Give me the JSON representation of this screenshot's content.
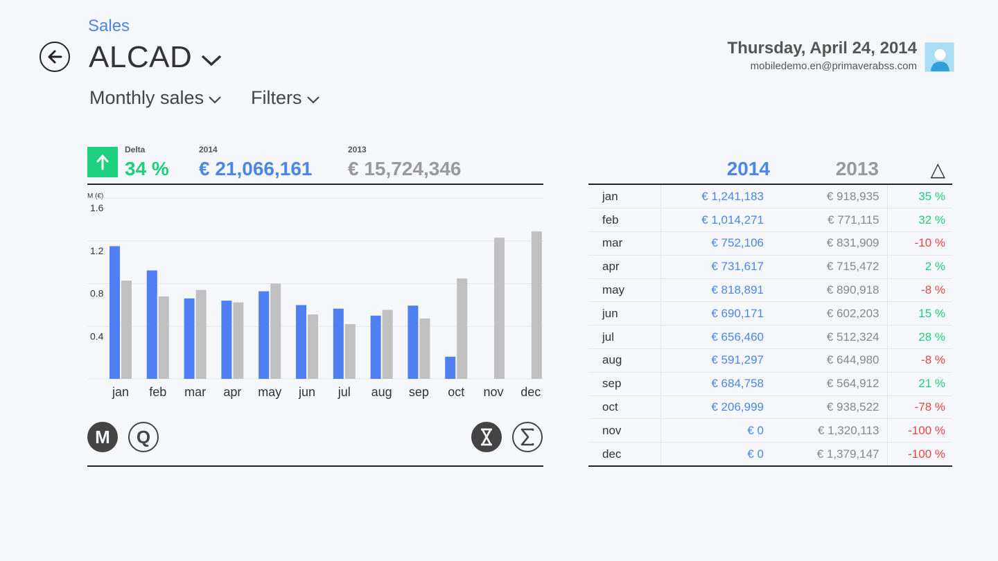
{
  "header": {
    "breadcrumb": "Sales",
    "title": "ALCAD",
    "date": "Thursday, April 24, 2014",
    "email": "mobiledemo.en@primaverabss.com"
  },
  "subnav": {
    "view_label": "Monthly sales",
    "filters_label": "Filters"
  },
  "kpi": {
    "delta_label": "Delta",
    "delta_value": "34 %",
    "current_label": "2014",
    "current_value": "€ 21,066,161",
    "previous_label": "2013",
    "previous_value": "€ 15,724,346"
  },
  "buttons": {
    "monthly": "M",
    "quarterly": "Q"
  },
  "colors": {
    "series_2014": "#4f7ff3",
    "series_2013": "#c0c0c0",
    "positive": "#1ecf7e",
    "negative": "#e84545",
    "accent": "#4a86e8"
  },
  "chart_data": {
    "type": "bar",
    "ylabel": "M (€)",
    "ylim": [
      0,
      1.6
    ],
    "yticks": [
      "1.6",
      "1.2",
      "0.8",
      "0.4"
    ],
    "categories": [
      "jan",
      "feb",
      "mar",
      "apr",
      "may",
      "jun",
      "jul",
      "aug",
      "sep",
      "oct",
      "nov",
      "dec"
    ],
    "series": [
      {
        "name": "2014",
        "values": [
          1.241183,
          1.014271,
          0.752106,
          0.731617,
          0.818891,
          0.690171,
          0.65646,
          0.591297,
          0.684758,
          0.206999,
          0,
          0
        ]
      },
      {
        "name": "2013",
        "values": [
          0.918935,
          0.771115,
          0.831909,
          0.715472,
          0.890918,
          0.602203,
          0.512324,
          0.64498,
          0.564912,
          0.938522,
          1.320113,
          1.379147
        ]
      }
    ]
  },
  "table": {
    "col_2014": "2014",
    "col_2013": "2013",
    "col_delta": "△",
    "rows": [
      {
        "month": "jan",
        "v2014": "€ 1,241,183",
        "v2013": "€ 918,935",
        "delta": "35 %",
        "positive": true
      },
      {
        "month": "feb",
        "v2014": "€ 1,014,271",
        "v2013": "€ 771,115",
        "delta": "32 %",
        "positive": true
      },
      {
        "month": "mar",
        "v2014": "€ 752,106",
        "v2013": "€ 831,909",
        "delta": "-10 %",
        "positive": false
      },
      {
        "month": "apr",
        "v2014": "€ 731,617",
        "v2013": "€ 715,472",
        "delta": "2 %",
        "positive": true
      },
      {
        "month": "may",
        "v2014": "€ 818,891",
        "v2013": "€ 890,918",
        "delta": "-8 %",
        "positive": false
      },
      {
        "month": "jun",
        "v2014": "€ 690,171",
        "v2013": "€ 602,203",
        "delta": "15 %",
        "positive": true
      },
      {
        "month": "jul",
        "v2014": "€ 656,460",
        "v2013": "€ 512,324",
        "delta": "28 %",
        "positive": true
      },
      {
        "month": "aug",
        "v2014": "€ 591,297",
        "v2013": "€ 644,980",
        "delta": "-8 %",
        "positive": false
      },
      {
        "month": "sep",
        "v2014": "€ 684,758",
        "v2013": "€ 564,912",
        "delta": "21 %",
        "positive": true
      },
      {
        "month": "oct",
        "v2014": "€ 206,999",
        "v2013": "€ 938,522",
        "delta": "-78 %",
        "positive": false
      },
      {
        "month": "nov",
        "v2014": "€ 0",
        "v2013": "€ 1,320,113",
        "delta": "-100 %",
        "positive": false
      },
      {
        "month": "dec",
        "v2014": "€ 0",
        "v2013": "€ 1,379,147",
        "delta": "-100 %",
        "positive": false
      }
    ]
  }
}
